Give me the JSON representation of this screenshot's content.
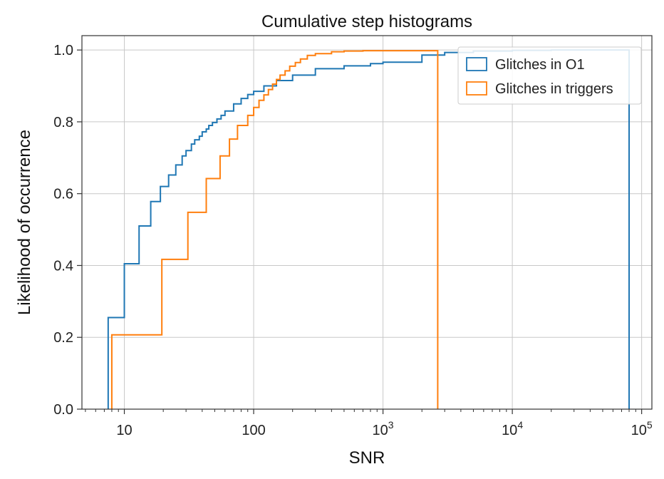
{
  "chart_data": {
    "type": "line",
    "title": "Cumulative step histograms",
    "xlabel": "SNR",
    "ylabel": "Likelihood of occurrence",
    "xscale": "log",
    "xlim": [
      4.7,
      120000
    ],
    "ylim": [
      0,
      1.04
    ],
    "grid": true,
    "legend_position": "top-right",
    "x_ticks": [
      {
        "value": 10,
        "mantissa": "10",
        "exponent": ""
      },
      {
        "value": 100,
        "mantissa": "100",
        "exponent": ""
      },
      {
        "value": 1000,
        "mantissa": "10",
        "exponent": "3"
      },
      {
        "value": 10000,
        "mantissa": "10",
        "exponent": "4"
      },
      {
        "value": 100000,
        "mantissa": "10",
        "exponent": "5"
      }
    ],
    "y_ticks": [
      {
        "value": 0.0,
        "label": "0.0"
      },
      {
        "value": 0.2,
        "label": "0.2"
      },
      {
        "value": 0.4,
        "label": "0.4"
      },
      {
        "value": 0.6,
        "label": "0.6"
      },
      {
        "value": 0.8,
        "label": "0.8"
      },
      {
        "value": 1.0,
        "label": "1.0"
      }
    ],
    "series": [
      {
        "name": "Glitches in O1",
        "color": "#1f77b4",
        "x": [
          7.5,
          10,
          13,
          16,
          19,
          22,
          25,
          28,
          30,
          33,
          35,
          38,
          40,
          43,
          45,
          48,
          52,
          56,
          60,
          70,
          80,
          90,
          100,
          120,
          150,
          200,
          300,
          500,
          800,
          1000,
          2000,
          3000,
          5000,
          10000,
          20000,
          50000,
          80000
        ],
        "y": [
          0.255,
          0.405,
          0.51,
          0.578,
          0.62,
          0.652,
          0.68,
          0.705,
          0.72,
          0.738,
          0.75,
          0.76,
          0.772,
          0.78,
          0.79,
          0.798,
          0.808,
          0.818,
          0.83,
          0.85,
          0.865,
          0.876,
          0.885,
          0.9,
          0.915,
          0.93,
          0.948,
          0.956,
          0.962,
          0.966,
          0.986,
          0.993,
          0.997,
          0.999,
          1.0,
          1.0,
          1.0
        ]
      },
      {
        "name": "Glitches in triggers",
        "color": "#ff7f0e",
        "x": [
          8,
          19.5,
          31,
          43,
          55,
          65,
          75,
          90,
          100,
          110,
          120,
          130,
          140,
          150,
          160,
          175,
          190,
          210,
          230,
          260,
          300,
          400,
          500,
          700,
          1000,
          2000,
          2650
        ],
        "y": [
          0.207,
          0.417,
          0.548,
          0.642,
          0.705,
          0.752,
          0.79,
          0.818,
          0.84,
          0.86,
          0.875,
          0.89,
          0.905,
          0.918,
          0.93,
          0.942,
          0.955,
          0.965,
          0.975,
          0.985,
          0.99,
          0.995,
          0.997,
          0.998,
          0.998,
          0.998,
          0.998
        ]
      }
    ]
  }
}
